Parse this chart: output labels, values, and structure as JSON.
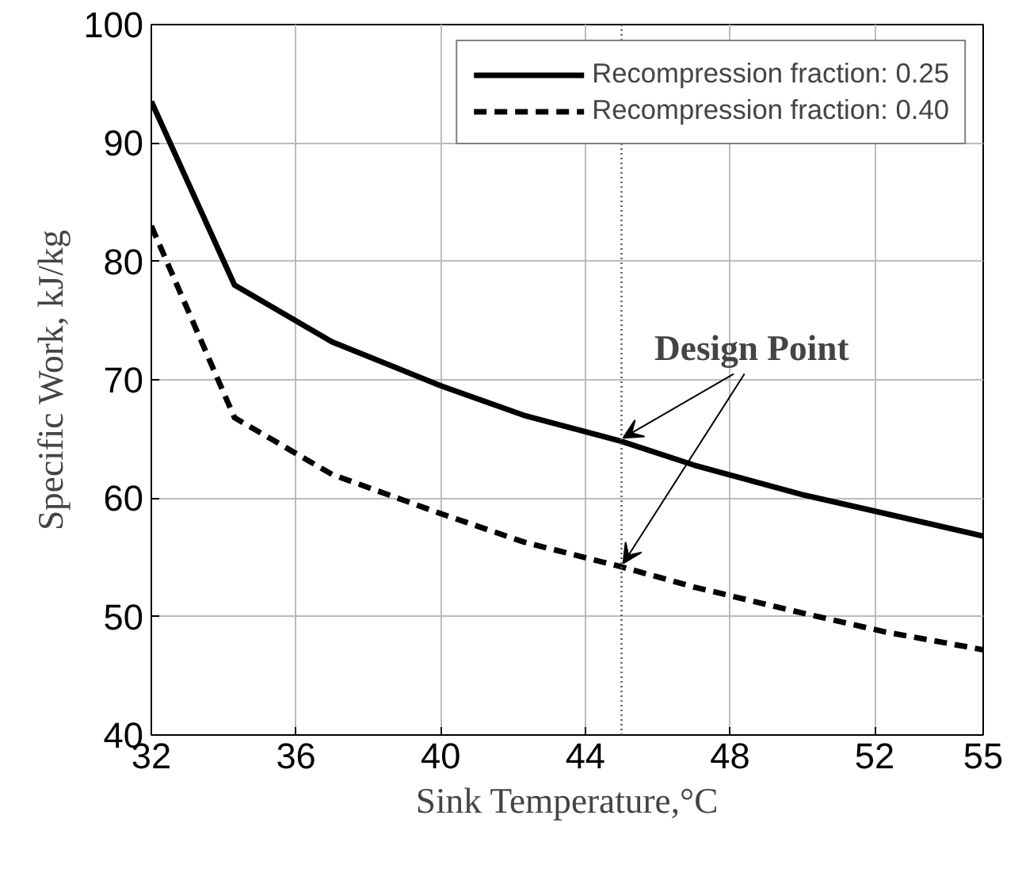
{
  "chart_data": {
    "type": "line",
    "xlabel": "Sink Temperature,°C",
    "ylabel": "Specific Work, kJ/kg",
    "x": [
      32,
      34.3,
      37,
      40,
      42.3,
      45,
      47,
      50,
      52.3,
      55
    ],
    "series": [
      {
        "name": "Recompression fraction: 0.25",
        "color": "#000000",
        "line_style": "solid",
        "values": [
          93.5,
          78,
          73.2,
          69.5,
          67,
          64.8,
          62.8,
          60.3,
          58.7,
          56.8
        ]
      },
      {
        "name": "Recompression fraction: 0.40",
        "color": "#000000",
        "line_style": "dashed",
        "values": [
          83,
          66.8,
          62,
          58.7,
          56.3,
          54.2,
          52.5,
          50.3,
          48.7,
          47.2
        ]
      }
    ],
    "xlim": [
      32,
      55
    ],
    "xticks": [
      32,
      36,
      40,
      44,
      48,
      52,
      55
    ],
    "ylim": [
      40,
      100
    ],
    "yticks": [
      40,
      50,
      60,
      70,
      80,
      90,
      100
    ],
    "grid": true,
    "legend": "top right",
    "marker": "none",
    "ref_lines": [
      {
        "axis": "x",
        "value": 45,
        "label": null,
        "line_style": "dotted",
        "color": "#555555"
      }
    ],
    "annotations": [
      {
        "text": "Design Point",
        "x": 45,
        "y": 64.8
      }
    ]
  }
}
